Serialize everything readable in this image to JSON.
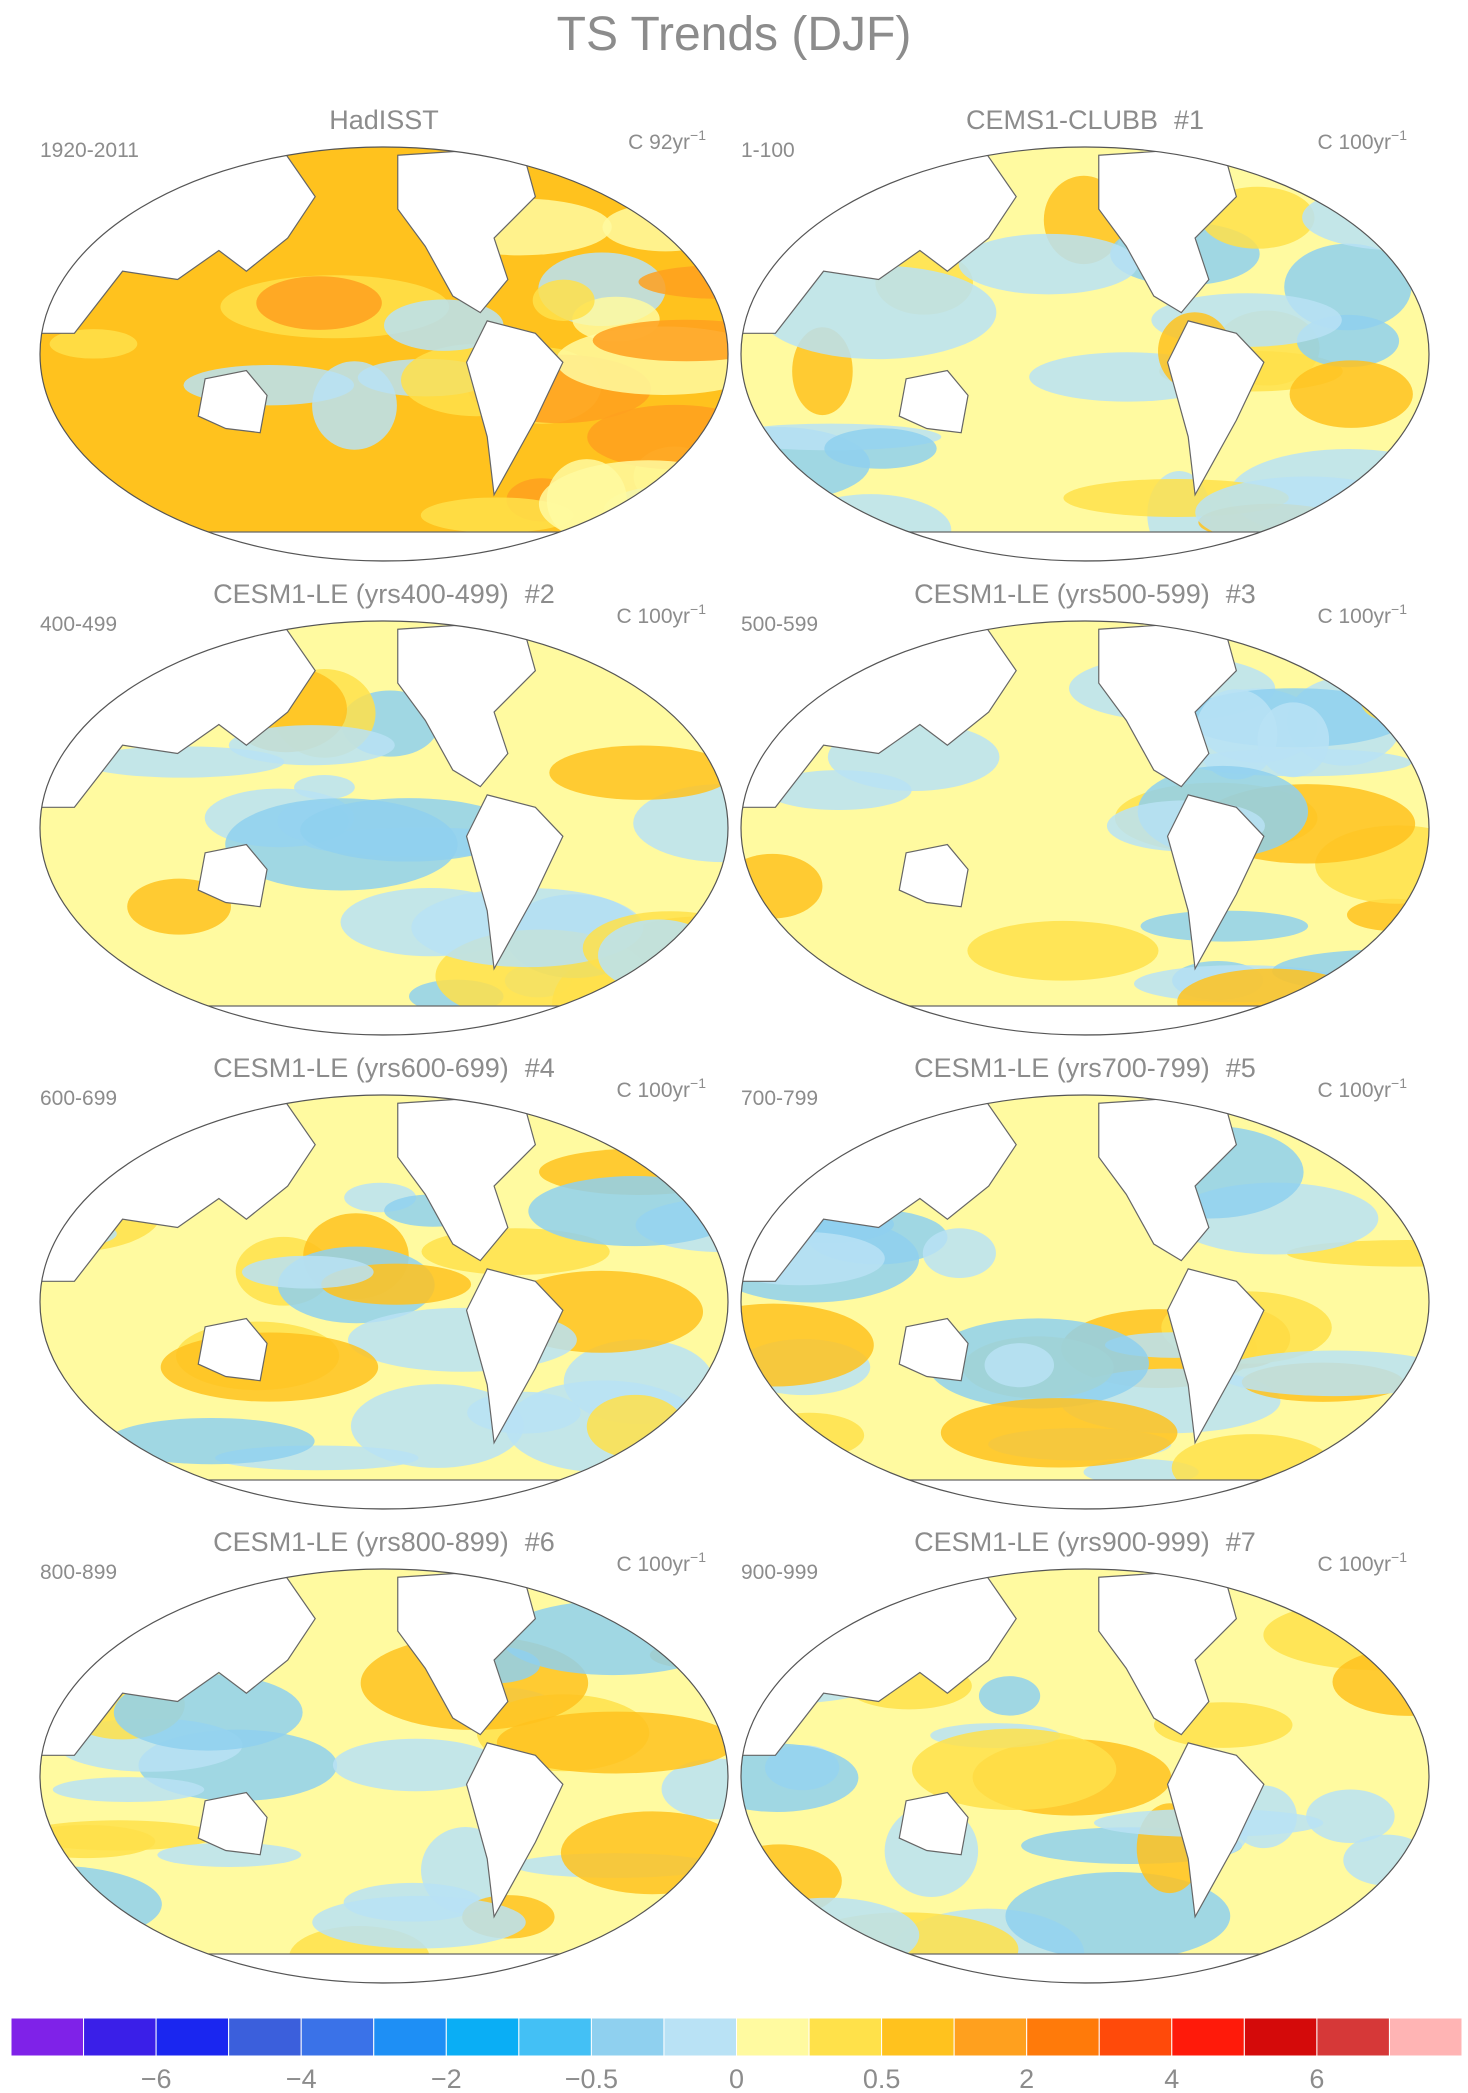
{
  "title": "TS Trends (DJF)",
  "panels": [
    {
      "title": "HadISST",
      "years": "1920-2011",
      "units": {
        "text": "C 92yr",
        "sup": "−1"
      }
    },
    {
      "title": "CEMS1-CLUBB",
      "number": "#1",
      "years": "1-100",
      "units": {
        "text": "C 100yr",
        "sup": "−1"
      }
    },
    {
      "title": "CESM1-LE (yrs400-499)",
      "number": "#2",
      "years": "400-499",
      "units": {
        "text": "C 100yr",
        "sup": "−1"
      }
    },
    {
      "title": "CESM1-LE (yrs500-599)",
      "number": "#3",
      "years": "500-599",
      "units": {
        "text": "C 100yr",
        "sup": "−1"
      }
    },
    {
      "title": "CESM1-LE (yrs600-699)",
      "number": "#4",
      "years": "600-699",
      "units": {
        "text": "C 100yr",
        "sup": "−1"
      }
    },
    {
      "title": "CESM1-LE (yrs700-799)",
      "number": "#5",
      "years": "700-799",
      "units": {
        "text": "C 100yr",
        "sup": "−1"
      }
    },
    {
      "title": "CESM1-LE (yrs800-899)",
      "number": "#6",
      "years": "800-899",
      "units": {
        "text": "C 100yr",
        "sup": "−1"
      }
    },
    {
      "title": "CESM1-LE (yrs900-999)",
      "number": "#7",
      "years": "900-999",
      "units": {
        "text": "C 100yr",
        "sup": "−1"
      }
    }
  ],
  "colorbar": {
    "colors": [
      "#7f22e8",
      "#3a1fe8",
      "#1a26f0",
      "#3b5fdc",
      "#3a72e8",
      "#1e8ff5",
      "#0aaef5",
      "#43c0f5",
      "#8fd0ef",
      "#b9e2f5",
      "#fffaa0",
      "#ffe14a",
      "#ffc21e",
      "#ffa01e",
      "#ff7a0a",
      "#ff4a0a",
      "#ff1a0a",
      "#d40a0a",
      "#d63838",
      "#ffb4b4"
    ],
    "labels": [
      "−6",
      "−4",
      "−2",
      "−0.5",
      "0",
      "0.5",
      "2",
      "4",
      "6"
    ]
  }
}
